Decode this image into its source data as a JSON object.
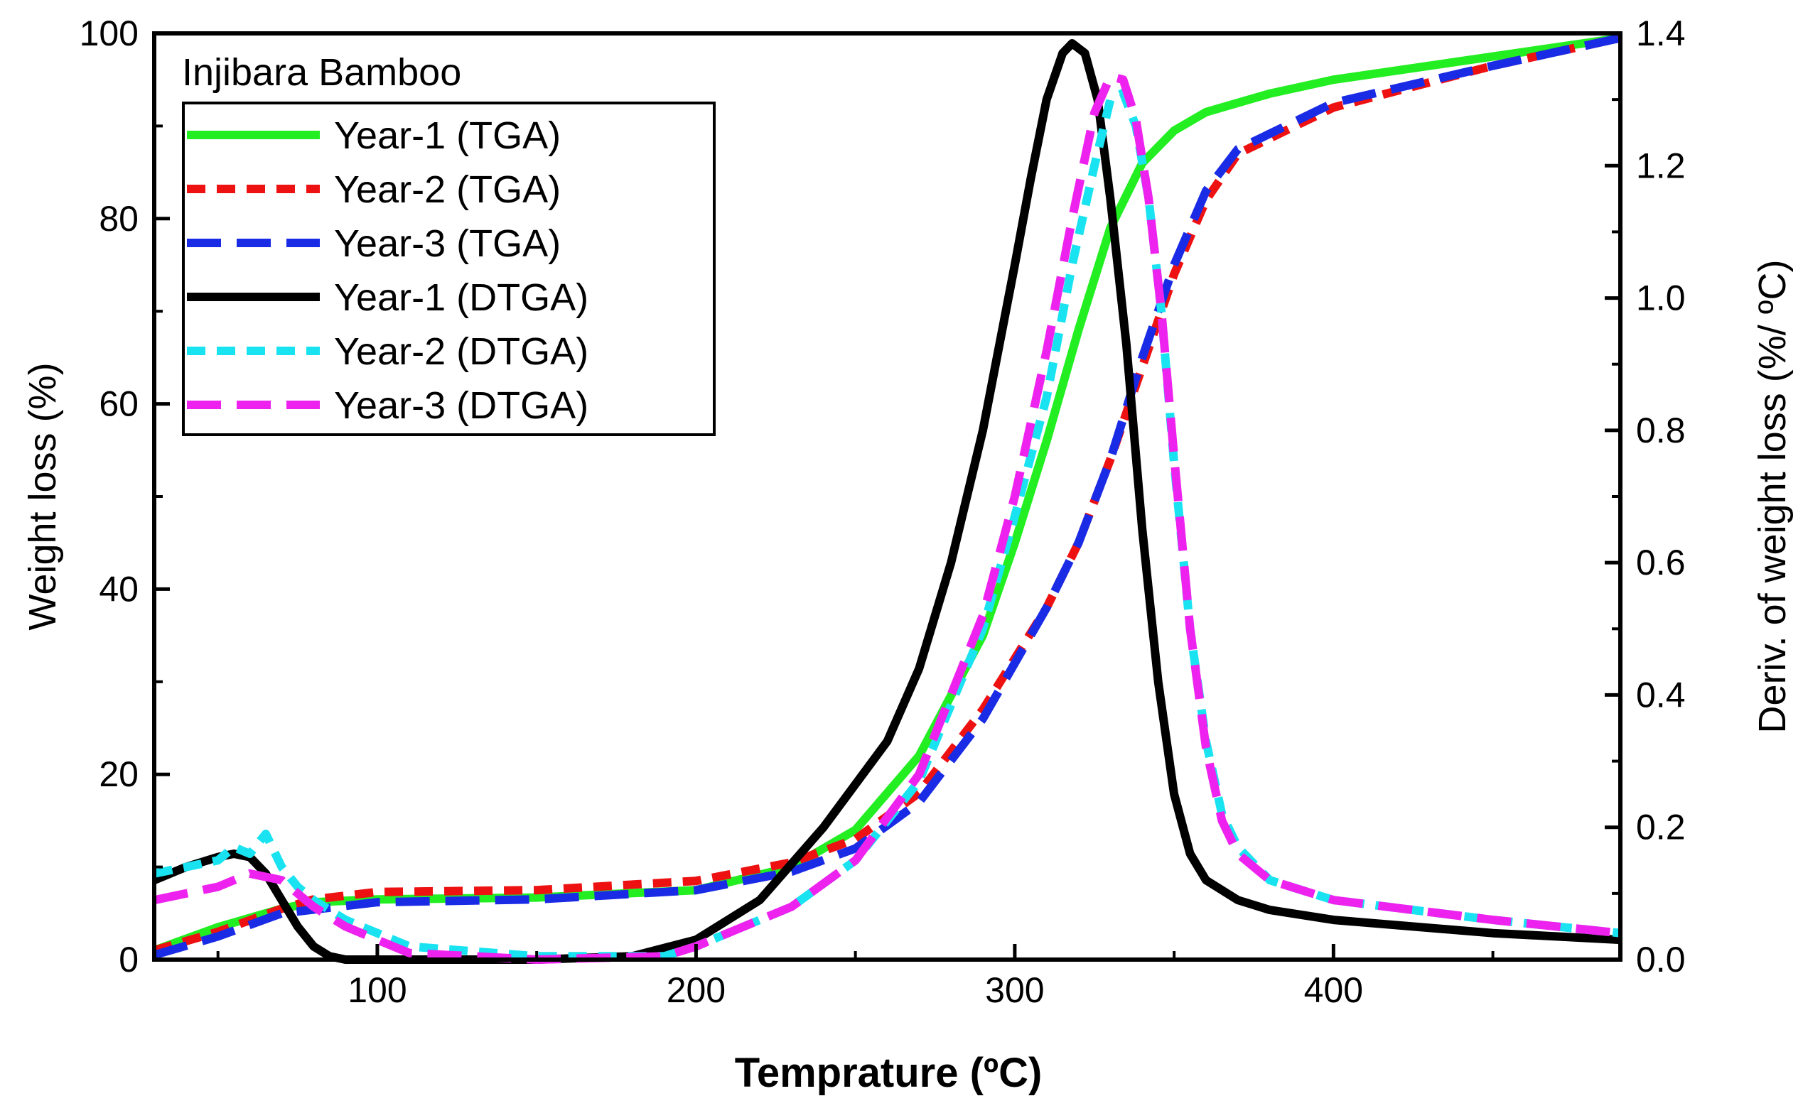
{
  "chart_data": {
    "type": "line",
    "annotation": "Injibara Bamboo",
    "xlabel": "Temprature (ºC)",
    "ylabel_left": "Weight loss (%)",
    "ylabel_right": "Deriv. of weight loss (%/ ºC)",
    "xlim": [
      30,
      490
    ],
    "ylim_left": [
      0,
      100
    ],
    "ylim_right": [
      0,
      1.4
    ],
    "x_ticks": [
      "100",
      "200",
      "300",
      "400"
    ],
    "y_left_ticks": [
      "0",
      "20",
      "40",
      "60",
      "80",
      "100"
    ],
    "y_right_ticks": [
      "0.0",
      "0.2",
      "0.4",
      "0.6",
      "0.8",
      "1.0",
      "1.2",
      "1.4"
    ],
    "grid": false,
    "legend_position": "top-left",
    "series": [
      {
        "name": "Year-1 (TGA)",
        "axis": "left",
        "color": "#22ee22",
        "dash": "solid",
        "x": [
          30,
          50,
          70,
          80,
          100,
          150,
          200,
          230,
          250,
          270,
          290,
          300,
          310,
          320,
          330,
          340,
          350,
          360,
          380,
          400,
          450,
          490
        ],
        "y": [
          1,
          3.5,
          5.5,
          6.2,
          6.5,
          6.7,
          7.5,
          10,
          14,
          22,
          35,
          45,
          56,
          68,
          79,
          86,
          89.5,
          91.5,
          93.5,
          95,
          97.5,
          99.5
        ]
      },
      {
        "name": "Year-2 (TGA)",
        "axis": "left",
        "color": "#ee1111",
        "dash": "dash",
        "x": [
          30,
          50,
          70,
          80,
          100,
          150,
          200,
          230,
          250,
          270,
          290,
          310,
          320,
          330,
          340,
          350,
          360,
          370,
          400,
          450,
          490
        ],
        "y": [
          1,
          3,
          5.5,
          6.5,
          7.3,
          7.5,
          8.5,
          10.5,
          13,
          18,
          27,
          38,
          45,
          54,
          64,
          74,
          82,
          87,
          92,
          96.5,
          99.5
        ]
      },
      {
        "name": "Year-3 (TGA)",
        "axis": "left",
        "color": "#1a2be6",
        "dash": "longdash",
        "x": [
          30,
          50,
          70,
          100,
          150,
          200,
          230,
          250,
          270,
          290,
          310,
          320,
          330,
          340,
          350,
          360,
          370,
          400,
          450,
          490
        ],
        "y": [
          0.5,
          2.5,
          5,
          6.2,
          6.5,
          7.5,
          9.5,
          12,
          17,
          26,
          38,
          45,
          54,
          65,
          75,
          83,
          87.5,
          92.5,
          96.5,
          99.5
        ]
      },
      {
        "name": "Year-1 (DTGA)",
        "axis": "right",
        "color": "#000000",
        "dash": "solid",
        "x": [
          30,
          40,
          50,
          55,
          60,
          65,
          70,
          75,
          80,
          85,
          90,
          95,
          100,
          120,
          150,
          180,
          200,
          220,
          240,
          260,
          270,
          280,
          290,
          300,
          305,
          310,
          315,
          318,
          322,
          326,
          330,
          335,
          340,
          345,
          350,
          355,
          360,
          370,
          380,
          400,
          450,
          490
        ],
        "y": [
          0.12,
          0.14,
          0.155,
          0.16,
          0.155,
          0.13,
          0.09,
          0.05,
          0.02,
          0.005,
          0.0,
          0.0,
          0.0,
          0.0,
          0.0,
          0.005,
          0.03,
          0.09,
          0.2,
          0.33,
          0.44,
          0.6,
          0.8,
          1.05,
          1.18,
          1.3,
          1.37,
          1.385,
          1.37,
          1.3,
          1.15,
          0.93,
          0.65,
          0.42,
          0.25,
          0.16,
          0.12,
          0.09,
          0.075,
          0.06,
          0.04,
          0.03
        ]
      },
      {
        "name": "Year-2 (DTGA)",
        "axis": "right",
        "color": "#19e3f0",
        "dash": "dash",
        "x": [
          30,
          40,
          50,
          55,
          60,
          65,
          70,
          75,
          80,
          90,
          100,
          110,
          150,
          190,
          200,
          210,
          230,
          250,
          270,
          290,
          300,
          310,
          318,
          325,
          330,
          334,
          338,
          342,
          346,
          350,
          355,
          360,
          365,
          370,
          380,
          400,
          450,
          490
        ],
        "y": [
          0.13,
          0.14,
          0.15,
          0.17,
          0.16,
          0.19,
          0.14,
          0.11,
          0.09,
          0.06,
          0.04,
          0.02,
          0.005,
          0.005,
          0.02,
          0.04,
          0.08,
          0.15,
          0.27,
          0.5,
          0.67,
          0.85,
          1.05,
          1.2,
          1.3,
          1.31,
          1.26,
          1.15,
          0.98,
          0.75,
          0.5,
          0.33,
          0.22,
          0.17,
          0.12,
          0.09,
          0.06,
          0.04
        ]
      },
      {
        "name": "Year-3 (DTGA)",
        "axis": "right",
        "color": "#ee22ee",
        "dash": "longdash",
        "x": [
          30,
          40,
          50,
          60,
          70,
          80,
          90,
          100,
          110,
          150,
          190,
          200,
          210,
          230,
          250,
          270,
          290,
          300,
          310,
          318,
          325,
          330,
          334,
          338,
          342,
          346,
          350,
          355,
          360,
          365,
          370,
          380,
          400,
          450,
          490
        ],
        "y": [
          0.09,
          0.1,
          0.11,
          0.13,
          0.12,
          0.08,
          0.05,
          0.03,
          0.01,
          0.0,
          0.005,
          0.02,
          0.04,
          0.08,
          0.15,
          0.28,
          0.52,
          0.7,
          0.92,
          1.12,
          1.28,
          1.335,
          1.33,
          1.27,
          1.15,
          0.98,
          0.76,
          0.5,
          0.32,
          0.21,
          0.16,
          0.12,
          0.09,
          0.06,
          0.04
        ]
      }
    ]
  }
}
